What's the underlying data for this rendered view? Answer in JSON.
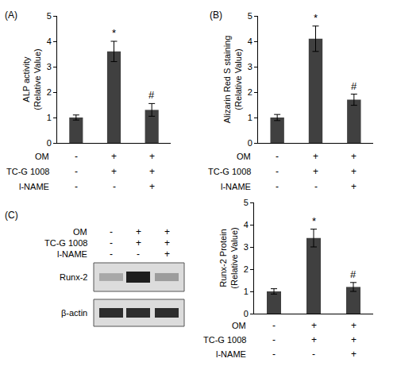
{
  "chart_data": [
    {
      "type": "bar",
      "panel": "(A)",
      "ylabel": [
        "ALP activity",
        "(Relative Value)"
      ],
      "categories": [
        null,
        null,
        null
      ],
      "values": [
        1.0,
        3.6,
        1.3
      ],
      "errors": [
        0.1,
        0.4,
        0.25
      ],
      "color": "#404040",
      "ylim": [
        0,
        5
      ],
      "yticks": [
        0,
        1,
        2,
        3,
        4,
        5
      ],
      "grid": false,
      "tick_labels": "y",
      "annotations": [
        {
          "index": 1,
          "text": "*"
        },
        {
          "index": 2,
          "text": "#"
        }
      ],
      "conditions": [
        {
          "name": "OM",
          "values": [
            "-",
            "+",
            "+"
          ]
        },
        {
          "name": "TC-G 1008",
          "values": [
            "-",
            "+",
            "+"
          ]
        },
        {
          "name": "l-NAME",
          "values": [
            "-",
            "-",
            "+"
          ]
        }
      ]
    },
    {
      "type": "bar",
      "panel": "(B)",
      "ylabel": [
        "Alizarin Red S staining",
        "(Relative Value)"
      ],
      "categories": [
        null,
        null,
        null
      ],
      "values": [
        1.0,
        4.1,
        1.7
      ],
      "errors": [
        0.12,
        0.5,
        0.22
      ],
      "color": "#404040",
      "ylim": [
        0,
        5
      ],
      "yticks": [
        0,
        1,
        2,
        3,
        4,
        5
      ],
      "grid": false,
      "tick_labels": "y",
      "annotations": [
        {
          "index": 1,
          "text": "*"
        },
        {
          "index": 2,
          "text": "#"
        }
      ],
      "conditions": [
        {
          "name": "OM",
          "values": [
            "-",
            "+",
            "+"
          ]
        },
        {
          "name": "TC-G 1008",
          "values": [
            "-",
            "+",
            "+"
          ]
        },
        {
          "name": "l-NAME",
          "values": [
            "-",
            "-",
            "+"
          ]
        }
      ]
    },
    {
      "type": "bar",
      "panel": "(C)",
      "ylabel": [
        "Runx-2 Protein",
        "(Relative Value)"
      ],
      "categories": [
        null,
        null,
        null
      ],
      "values": [
        1.0,
        3.4,
        1.2
      ],
      "errors": [
        0.12,
        0.4,
        0.2
      ],
      "color": "#404040",
      "ylim": [
        0,
        5
      ],
      "yticks": [
        0,
        1,
        2,
        3,
        4,
        5
      ],
      "grid": false,
      "tick_labels": "y",
      "annotations": [
        {
          "index": 1,
          "text": "*"
        },
        {
          "index": 2,
          "text": "#"
        }
      ],
      "conditions": [
        {
          "name": "OM",
          "values": [
            "-",
            "+",
            "+"
          ]
        },
        {
          "name": "TC-G 1008",
          "values": [
            "-",
            "+",
            "+"
          ]
        },
        {
          "name": "l-NAME",
          "values": [
            "-",
            "-",
            "+"
          ]
        }
      ],
      "blot": {
        "bands": [
          "Runx-2",
          "β-actin"
        ]
      }
    }
  ]
}
